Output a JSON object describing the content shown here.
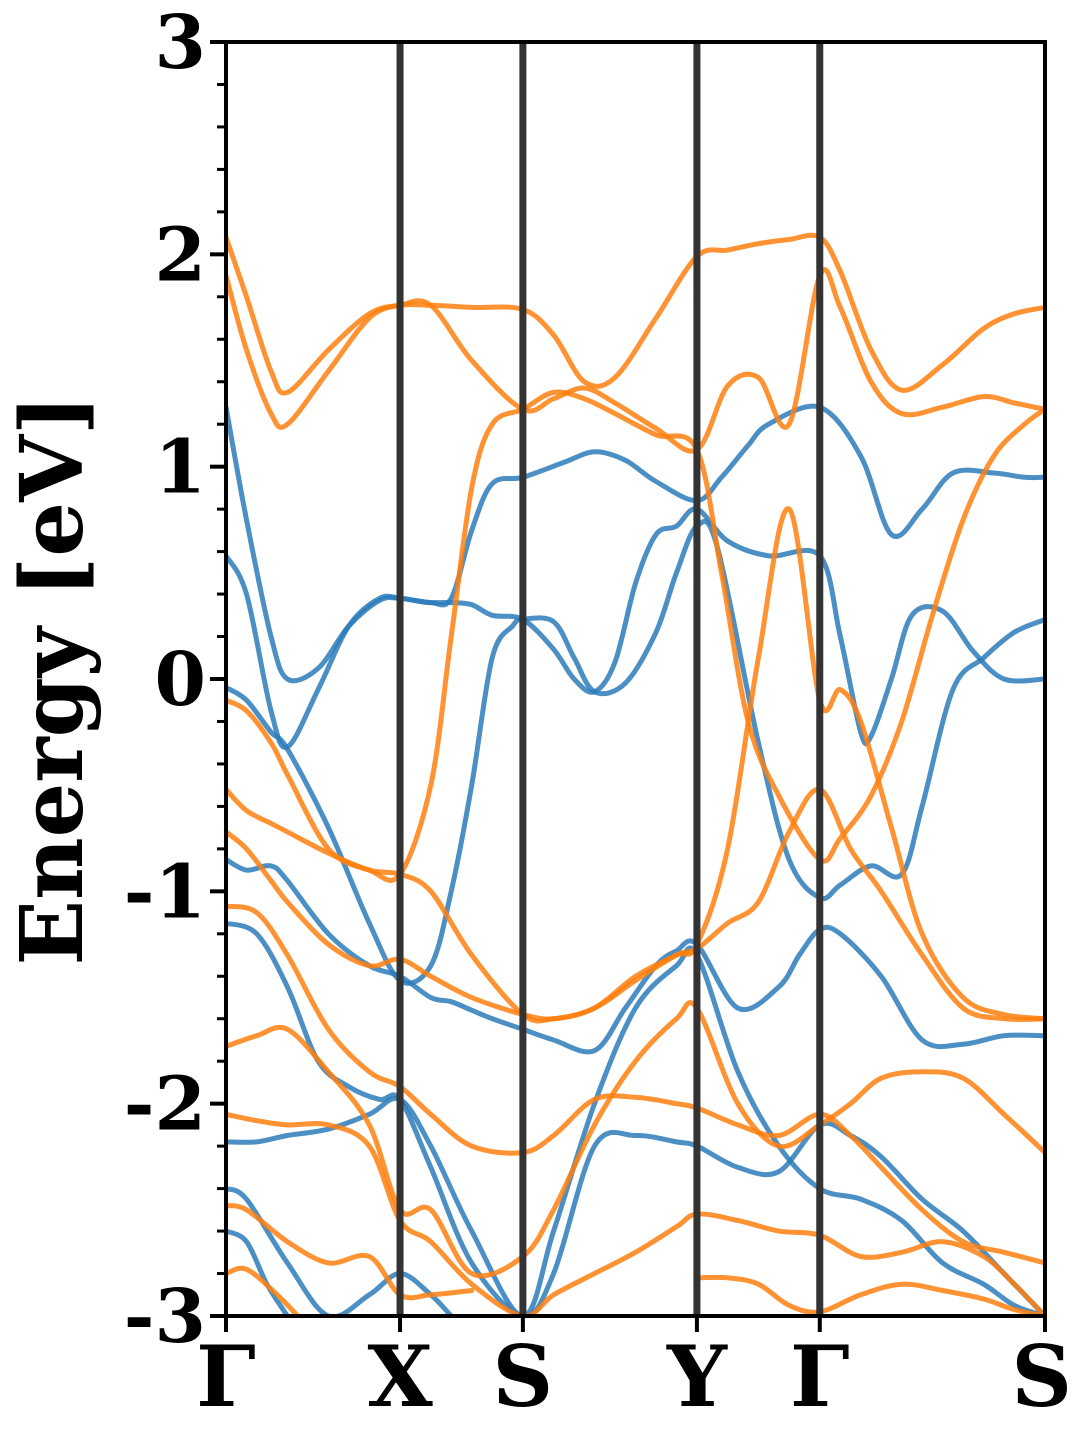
{
  "chart_data": {
    "type": "line",
    "ylabel": "Energy [eV]",
    "ylim": [
      -3,
      3
    ],
    "x_range": [
      0,
      4
    ],
    "x_ticks": [
      {
        "pos": 0.0,
        "label": "Γ"
      },
      {
        "pos": 0.85,
        "label": "X"
      },
      {
        "pos": 1.45,
        "label": "S"
      },
      {
        "pos": 2.3,
        "label": "Y"
      },
      {
        "pos": 2.9,
        "label": "Γ"
      },
      {
        "pos": 4.0,
        "label": "S"
      }
    ],
    "y_ticks": [
      -3,
      -2,
      -1,
      0,
      1,
      2,
      3
    ],
    "y_tick_labels": [
      "-3",
      "-2",
      "-1",
      "0",
      "1",
      "2",
      "3"
    ],
    "minor_y_step": 0.2,
    "grid": false,
    "colors": {
      "blue_bands": "#2b7bba",
      "orange_bands": "#ff7f0e",
      "k_lines": "#333333"
    },
    "series": [
      {
        "color": "#2b7bba",
        "x": [
          0,
          0.1,
          0.22,
          0.3,
          0.45,
          0.6,
          0.75,
          0.85,
          1.0,
          1.1,
          1.2,
          1.3,
          1.45,
          1.65,
          1.8,
          1.95,
          2.1,
          2.3,
          2.42,
          2.55,
          2.65,
          2.9,
          3.1,
          3.25,
          3.4,
          3.55,
          3.75,
          3.9,
          4.0
        ],
        "y": [
          1.28,
          0.75,
          0.2,
          0.0,
          0.05,
          0.25,
          0.37,
          0.38,
          0.36,
          0.38,
          0.7,
          0.92,
          0.95,
          1.02,
          1.07,
          1.03,
          0.93,
          0.84,
          0.95,
          1.1,
          1.2,
          1.28,
          1.05,
          0.68,
          0.8,
          0.97,
          0.97,
          0.95,
          0.95
        ]
      },
      {
        "color": "#2b7bba",
        "x": [
          0,
          0.1,
          0.22,
          0.3,
          0.45,
          0.6,
          0.75,
          0.85,
          0.92,
          1.0,
          1.1,
          1.2,
          1.3,
          1.45,
          1.6,
          1.7,
          1.8,
          1.9,
          2.0,
          2.1,
          2.2,
          2.3,
          2.45,
          2.65,
          2.9,
          3.0,
          3.1,
          3.15,
          3.25,
          3.35,
          3.5,
          3.65,
          3.8,
          4.0
        ],
        "y": [
          0.58,
          0.4,
          -0.15,
          -0.32,
          -0.05,
          0.25,
          0.38,
          0.38,
          0.37,
          0.36,
          0.36,
          0.35,
          0.3,
          0.28,
          0.14,
          0.0,
          -0.06,
          0.08,
          0.45,
          0.68,
          0.72,
          0.8,
          0.65,
          0.58,
          0.58,
          0.2,
          -0.25,
          -0.27,
          0.0,
          0.3,
          0.32,
          0.13,
          0.0,
          0.0
        ]
      },
      {
        "color": "#2b7bba",
        "x": [
          0,
          0.1,
          0.22,
          0.3,
          0.5,
          0.7,
          0.85,
          1.0,
          1.1,
          1.2,
          1.3,
          1.4,
          1.45,
          1.6,
          1.7,
          1.8,
          1.95,
          2.1,
          2.2,
          2.3,
          2.4,
          2.6,
          2.75,
          2.9,
          3.0,
          3.15,
          3.3,
          3.4,
          3.55,
          3.7,
          3.85,
          4.0
        ],
        "y": [
          -0.04,
          -0.1,
          -0.25,
          -0.33,
          -0.7,
          -1.15,
          -1.42,
          -1.35,
          -1.0,
          -0.5,
          0.1,
          0.25,
          0.28,
          0.27,
          0.1,
          -0.06,
          -0.02,
          0.22,
          0.5,
          0.72,
          0.62,
          -0.3,
          -0.85,
          -1.03,
          -0.97,
          -0.88,
          -0.92,
          -0.6,
          -0.05,
          0.1,
          0.22,
          0.28
        ]
      },
      {
        "color": "#2b7bba",
        "x": [
          0,
          0.1,
          0.22,
          0.3,
          0.5,
          0.7,
          0.85,
          1.0,
          1.1,
          1.2,
          1.3,
          1.45,
          1.6,
          1.8,
          1.95,
          2.1,
          2.2,
          2.3,
          2.5,
          2.7,
          2.8,
          2.9,
          3.0,
          3.2,
          3.4,
          3.6,
          3.8,
          4.0
        ],
        "y": [
          -0.85,
          -0.9,
          -0.88,
          -0.95,
          -1.2,
          -1.35,
          -1.4,
          -1.5,
          -1.52,
          -1.56,
          -1.6,
          -1.65,
          -1.7,
          -1.75,
          -1.55,
          -1.35,
          -1.28,
          -1.25,
          -1.55,
          -1.45,
          -1.3,
          -1.18,
          -1.2,
          -1.4,
          -1.7,
          -1.72,
          -1.68,
          -1.68
        ]
      },
      {
        "color": "#2b7bba",
        "x": [
          0,
          0.15,
          0.3,
          0.45,
          0.6,
          0.75,
          0.85,
          1.0,
          1.2,
          1.45,
          1.6,
          1.8,
          2.0,
          2.2,
          2.3,
          2.5,
          2.7,
          2.9,
          3.05,
          3.2,
          3.4,
          3.6,
          3.8,
          4.0
        ],
        "y": [
          -1.15,
          -1.2,
          -1.45,
          -1.8,
          -1.92,
          -1.98,
          -1.98,
          -2.3,
          -2.75,
          -3.0,
          -2.8,
          -2.2,
          -2.15,
          -2.18,
          -2.2,
          -2.3,
          -2.32,
          -2.1,
          -2.15,
          -2.25,
          -2.45,
          -2.6,
          -2.8,
          -3.0
        ]
      },
      {
        "color": "#2b7bba",
        "x": [
          0,
          0.15,
          0.3,
          0.5,
          0.7,
          0.85,
          1.0,
          1.2,
          1.45,
          1.6,
          1.8,
          2.0,
          2.2,
          2.3,
          2.5,
          2.7,
          2.9,
          3.1,
          3.3,
          3.5,
          3.7,
          3.85,
          4.0
        ],
        "y": [
          -2.18,
          -2.18,
          -2.15,
          -2.12,
          -2.05,
          -1.98,
          -2.2,
          -2.6,
          -3.0,
          -2.6,
          -2.0,
          -1.55,
          -1.35,
          -1.3,
          -1.85,
          -2.2,
          -2.4,
          -2.45,
          -2.55,
          -2.75,
          -2.85,
          -2.95,
          -3.0
        ]
      },
      {
        "color": "#2b7bba",
        "x": [
          0,
          0.1,
          0.3,
          0.5,
          0.7,
          0.85,
          1.0,
          1.1
        ],
        "y": [
          -2.4,
          -2.45,
          -2.75,
          -3.0,
          -2.9,
          -2.8,
          -2.9,
          -3.0
        ]
      },
      {
        "color": "#2b7bba",
        "x": [
          0,
          0.1,
          0.2,
          0.3
        ],
        "y": [
          -2.6,
          -2.65,
          -2.85,
          -3.0
        ]
      },
      {
        "color": "#ff7f0e",
        "x": [
          0,
          0.1,
          0.22,
          0.3,
          0.5,
          0.7,
          0.85,
          1.0,
          1.2,
          1.45,
          1.6,
          1.75,
          1.9,
          2.1,
          2.3,
          2.45,
          2.6,
          2.75,
          2.9,
          3.0,
          3.15,
          3.3,
          3.5,
          3.7,
          3.85,
          4.0
        ],
        "y": [
          2.08,
          1.8,
          1.45,
          1.35,
          1.55,
          1.72,
          1.76,
          1.76,
          1.75,
          1.74,
          1.62,
          1.4,
          1.42,
          1.7,
          1.99,
          2.02,
          2.05,
          2.07,
          2.08,
          1.92,
          1.55,
          1.36,
          1.48,
          1.65,
          1.72,
          1.75
        ]
      },
      {
        "color": "#ff7f0e",
        "x": [
          0,
          0.1,
          0.22,
          0.3,
          0.5,
          0.7,
          0.85,
          1.0,
          1.2,
          1.45,
          1.6,
          1.75,
          1.9,
          2.1,
          2.3,
          2.45,
          2.6,
          2.75,
          2.9,
          3.0,
          3.15,
          3.3,
          3.5,
          3.7,
          3.85,
          4.0
        ],
        "y": [
          1.9,
          1.55,
          1.25,
          1.2,
          1.45,
          1.7,
          1.76,
          1.76,
          1.5,
          1.27,
          1.32,
          1.37,
          1.3,
          1.18,
          1.08,
          1.38,
          1.42,
          1.2,
          1.9,
          1.75,
          1.4,
          1.25,
          1.28,
          1.33,
          1.3,
          1.27
        ]
      },
      {
        "color": "#ff7f0e",
        "x": [
          0,
          0.1,
          0.22,
          0.3,
          0.5,
          0.7,
          0.85,
          1.0,
          1.1,
          1.2,
          1.3,
          1.45,
          1.6,
          1.75,
          1.9,
          2.1,
          2.3,
          2.42,
          2.55,
          2.7,
          2.9,
          3.0,
          3.15,
          3.3,
          3.45,
          3.6,
          3.75,
          3.9,
          4.0
        ],
        "y": [
          -0.1,
          -0.15,
          -0.3,
          -0.45,
          -0.8,
          -0.9,
          -0.92,
          -0.5,
          0.2,
          0.9,
          1.2,
          1.27,
          1.35,
          1.32,
          1.25,
          1.15,
          1.08,
          0.5,
          -0.2,
          -0.55,
          -0.85,
          -0.75,
          -0.55,
          -0.2,
          0.3,
          0.75,
          1.05,
          1.2,
          1.27
        ]
      },
      {
        "color": "#ff7f0e",
        "x": [
          0,
          0.1,
          0.22,
          0.3,
          0.5,
          0.7,
          0.85,
          1.0,
          1.2,
          1.45,
          1.6,
          1.8,
          2.0,
          2.2,
          2.3,
          2.45,
          2.6,
          2.75,
          2.9,
          3.0,
          3.1,
          3.25,
          3.4,
          3.6,
          3.8,
          4.0
        ],
        "y": [
          -0.52,
          -0.62,
          -0.68,
          -0.72,
          -0.82,
          -0.9,
          -0.92,
          -1.0,
          -1.3,
          -1.58,
          -1.6,
          -1.55,
          -1.4,
          -1.3,
          -1.25,
          -0.8,
          0.1,
          0.8,
          -0.1,
          -0.05,
          -0.2,
          -0.7,
          -1.2,
          -1.5,
          -1.58,
          -1.6
        ]
      },
      {
        "color": "#ff7f0e",
        "x": [
          0,
          0.1,
          0.22,
          0.3,
          0.5,
          0.7,
          0.85,
          1.0,
          1.2,
          1.45,
          1.6,
          1.8,
          2.0,
          2.2,
          2.3,
          2.45,
          2.6,
          2.75,
          2.9,
          3.05,
          3.2,
          3.4,
          3.6,
          3.8,
          4.0
        ],
        "y": [
          -0.72,
          -0.8,
          -0.95,
          -1.05,
          -1.25,
          -1.35,
          -1.32,
          -1.4,
          -1.5,
          -1.58,
          -1.6,
          -1.55,
          -1.42,
          -1.3,
          -1.27,
          -1.15,
          -1.05,
          -0.72,
          -0.52,
          -0.8,
          -1.0,
          -1.3,
          -1.55,
          -1.6,
          -1.6
        ]
      },
      {
        "color": "#ff7f0e",
        "x": [
          0,
          0.15,
          0.3,
          0.5,
          0.7,
          0.85,
          1.0,
          1.2,
          1.45,
          1.6,
          1.8,
          2.0,
          2.2,
          2.3,
          2.5,
          2.7,
          2.9,
          3.05,
          3.2,
          3.4,
          3.6,
          3.8,
          4.0
        ],
        "y": [
          -1.07,
          -1.1,
          -1.3,
          -1.65,
          -1.85,
          -1.92,
          -2.05,
          -2.2,
          -2.23,
          -2.15,
          -1.98,
          -1.97,
          -2.0,
          -2.02,
          -2.1,
          -2.15,
          -2.05,
          -2.15,
          -2.3,
          -2.5,
          -2.65,
          -2.7,
          -2.75
        ]
      },
      {
        "color": "#ff7f0e",
        "x": [
          0,
          0.15,
          0.3,
          0.5,
          0.7,
          0.85,
          1.0,
          1.2,
          1.45,
          1.6,
          1.8,
          2.0,
          2.2,
          2.3,
          2.5,
          2.7,
          2.9,
          3.05,
          3.2,
          3.4,
          3.6,
          3.8,
          4.0
        ],
        "y": [
          -1.73,
          -1.68,
          -1.65,
          -1.85,
          -2.1,
          -2.5,
          -2.5,
          -2.8,
          -2.72,
          -2.5,
          -2.1,
          -1.8,
          -1.6,
          -1.55,
          -2.0,
          -2.2,
          -2.1,
          -2.0,
          -1.88,
          -1.85,
          -1.88,
          -2.05,
          -2.23
        ]
      },
      {
        "color": "#ff7f0e",
        "x": [
          0,
          0.15,
          0.3,
          0.5,
          0.7,
          0.85,
          1.0,
          1.2,
          1.45,
          1.6,
          1.8,
          2.0,
          2.2,
          2.3,
          2.5,
          2.7,
          2.9,
          3.1,
          3.3,
          3.5,
          3.7,
          3.85,
          4.0
        ],
        "y": [
          -2.05,
          -2.08,
          -2.1,
          -2.1,
          -2.2,
          -2.55,
          -2.65,
          -2.85,
          -3.0,
          -2.9,
          -2.8,
          -2.7,
          -2.58,
          -2.52,
          -2.55,
          -2.6,
          -2.62,
          -2.72,
          -2.7,
          -2.65,
          -2.72,
          -2.85,
          -3.0
        ]
      },
      {
        "color": "#ff7f0e",
        "x": [
          0,
          0.1,
          0.3,
          0.5,
          0.7,
          0.85,
          1.0,
          1.2
        ],
        "y": [
          -2.48,
          -2.5,
          -2.65,
          -2.75,
          -2.72,
          -2.9,
          -2.9,
          -2.88
        ]
      },
      {
        "color": "#ff7f0e",
        "x": [
          0,
          0.1,
          0.25,
          0.35
        ],
        "y": [
          -2.8,
          -2.78,
          -2.9,
          -3.0
        ]
      },
      {
        "color": "#ff7f0e",
        "x": [
          2.3,
          2.45,
          2.6,
          2.75,
          2.9,
          3.1,
          3.3,
          3.5,
          3.7,
          3.85,
          4.0
        ],
        "y": [
          -2.82,
          -2.82,
          -2.85,
          -2.95,
          -2.98,
          -2.9,
          -2.85,
          -2.88,
          -2.92,
          -2.97,
          -3.0
        ]
      }
    ]
  }
}
